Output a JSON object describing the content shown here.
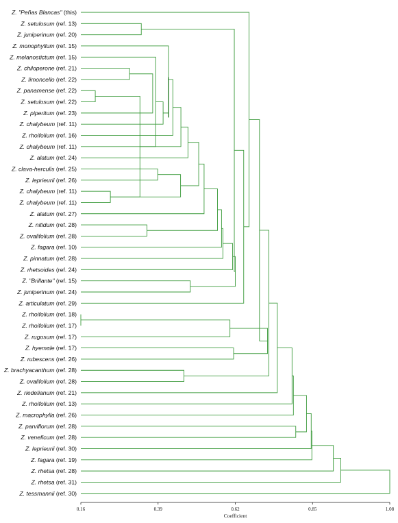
{
  "chart_data": {
    "type": "dendrogram",
    "xlabel": "Coefficient",
    "xlim": [
      0.16,
      1.08
    ],
    "ticks": [
      "0.16",
      "0.39",
      "0.62",
      "0.85",
      "1.08"
    ],
    "grid": false,
    "line_color": "#3a9a3a",
    "highlight_color": "#0b6b0b",
    "leaves": [
      {
        "sp": "Z. \"Peñas Blancas\"",
        "ref": "(this)"
      },
      {
        "sp": "Z. setulosum",
        "ref": "(ref. 13)"
      },
      {
        "sp": "Z. juniperinum",
        "ref": "(ref. 20)"
      },
      {
        "sp": "Z. monophyllum",
        "ref": "(ref. 15)"
      },
      {
        "sp": "Z. melanostictum",
        "ref": "(ref. 15)"
      },
      {
        "sp": "Z. chiloperone",
        "ref": "(ref. 21)"
      },
      {
        "sp": "Z. limoncello",
        "ref": "(ref. 22)"
      },
      {
        "sp": "Z. panamense",
        "ref": "(ref. 22)"
      },
      {
        "sp": "Z. setulosum",
        "ref": "(ref. 22)"
      },
      {
        "sp": "Z. piperitum",
        "ref": "(ref. 23)"
      },
      {
        "sp": "Z. chalybeum",
        "ref": "(ref. 11)"
      },
      {
        "sp": "Z. rhoifolium",
        "ref": "(ref. 16)"
      },
      {
        "sp": "Z. chalybeum",
        "ref": "(ref. 11)"
      },
      {
        "sp": "Z. alatum",
        "ref": "(ref. 24)"
      },
      {
        "sp": "Z. clava-herculis",
        "ref": "(ref. 25)"
      },
      {
        "sp": "Z. leprieurii",
        "ref": "(ref. 26)"
      },
      {
        "sp": "Z. chalybeum",
        "ref": "(ref. 11)"
      },
      {
        "sp": "Z. chalybeum",
        "ref": "(ref. 11)"
      },
      {
        "sp": "Z. alatum",
        "ref": "(ref. 27)"
      },
      {
        "sp": "Z. nitidum",
        "ref": "(ref. 28)"
      },
      {
        "sp": "Z. ovalifolium",
        "ref": "(ref. 28)"
      },
      {
        "sp": "Z. fagara",
        "ref": "(ref. 10)"
      },
      {
        "sp": "Z. pinnatum",
        "ref": "(ref. 28)"
      },
      {
        "sp": "Z. rhetsoides",
        "ref": "(ref. 24)"
      },
      {
        "sp": "Z. \"Brillante\"",
        "ref": "(ref. 15)"
      },
      {
        "sp": "Z. juniperinum",
        "ref": "(ref. 24)"
      },
      {
        "sp": "Z. articulatum",
        "ref": "(ref. 29)"
      },
      {
        "sp": "Z. rhoifolium",
        "ref": "(ref. 18)"
      },
      {
        "sp": "Z. rhoifolium",
        "ref": "(ref. 17)"
      },
      {
        "sp": "Z. rugosum",
        "ref": "(ref. 17)"
      },
      {
        "sp": "Z. hyemale",
        "ref": "(ref. 17)"
      },
      {
        "sp": "Z. rubescens",
        "ref": "(ref. 26)"
      },
      {
        "sp": "Z. brachyacanthum",
        "ref": "(ref. 28)"
      },
      {
        "sp": "Z. ovalifolium",
        "ref": "(ref. 28)"
      },
      {
        "sp": "Z. riedelianum",
        "ref": "(ref. 21)"
      },
      {
        "sp": "Z. rhoifolium",
        "ref": "(ref. 13)"
      },
      {
        "sp": "Z. macrophylla",
        "ref": "(ref. 26)"
      },
      {
        "sp": "Z. parviflorum",
        "ref": "(ref. 28)"
      },
      {
        "sp": "Z. veneficum",
        "ref": "(ref. 28)"
      },
      {
        "sp": "Z. leprieurii",
        "ref": "(ref. 30)"
      },
      {
        "sp": "Z. fagara",
        "ref": "(ref. 19)"
      },
      {
        "sp": "Z. rhetsa",
        "ref": "(ref. 28)"
      },
      {
        "sp": "Z. rhetsa",
        "ref": "(ref. 31)"
      },
      {
        "sp": "Z. tessmannii",
        "ref": "(ref. 30)"
      }
    ],
    "merges": [
      {
        "a": "L27",
        "b": "L28",
        "h": 0.16
      },
      {
        "a": "L16",
        "b": "L17",
        "h": 0.248
      },
      {
        "a": "L7",
        "b": "L8",
        "h": 0.203
      },
      {
        "a": "L5",
        "b": "L6",
        "h": 0.305
      },
      {
        "a": "N3",
        "b": "N2",
        "h": 0.336
      },
      {
        "a": "N4",
        "b": "L9",
        "h": 0.374
      },
      {
        "a": "L14",
        "b": "L15",
        "h": 0.389
      },
      {
        "a": "N5",
        "b": "L4",
        "h": 0.383
      },
      {
        "a": "N8",
        "b": "L10",
        "h": 0.405
      },
      {
        "a": "L3",
        "b": "N9",
        "h": 0.421
      },
      {
        "a": "N10",
        "b": "L11",
        "h": 0.434
      },
      {
        "a": "N11",
        "b": "L12",
        "h": 0.458
      },
      {
        "a": "N12",
        "b": "L13",
        "h": 0.479
      },
      {
        "a": "N7",
        "b": "N2_b",
        "h": 0.457
      },
      {
        "a": "N13",
        "b": "N14",
        "h": 0.511
      },
      {
        "a": "N15",
        "b": "L18",
        "h": 0.527
      },
      {
        "a": "L19",
        "b": "L20",
        "h": 0.357
      },
      {
        "a": "N16",
        "b": "N17",
        "h": 0.567
      },
      {
        "a": "N18",
        "b": "L21",
        "h": 0.579
      },
      {
        "a": "N19",
        "b": "L22",
        "h": 0.583
      },
      {
        "a": "L24",
        "b": "L25",
        "h": 0.486
      },
      {
        "a": "N20",
        "b": "L23",
        "h": 0.612
      },
      {
        "a": "N22",
        "b": "N21",
        "h": 0.62
      },
      {
        "a": "L1",
        "b": "L2",
        "h": 0.34
      },
      {
        "a": "N24",
        "b": "N23",
        "h": 0.617
      },
      {
        "a": "N25",
        "b": "L26",
        "h": 0.645
      },
      {
        "a": "N1",
        "b": "L29",
        "h": 0.604
      },
      {
        "a": "L30",
        "b": "L31",
        "h": 0.615
      },
      {
        "a": "L0",
        "b": "N26",
        "h": 0.661
      },
      {
        "a": "N27",
        "b": "N28",
        "h": 0.716
      },
      {
        "a": "N29",
        "b": "N30",
        "h": 0.692
      },
      {
        "a": "L32",
        "b": "L33",
        "h": 0.467
      },
      {
        "a": "N31",
        "b": "N32",
        "h": 0.72
      },
      {
        "a": "N33",
        "b": "L34",
        "h": 0.745
      },
      {
        "a": "N34",
        "b": "L35",
        "h": 0.789
      },
      {
        "a": "L37",
        "b": "L38",
        "h": 0.8
      },
      {
        "a": "N35",
        "b": "L36",
        "h": 0.793
      },
      {
        "a": "N37",
        "b": "N36",
        "h": 0.832
      },
      {
        "a": "N38",
        "b": "L39",
        "h": 0.846
      },
      {
        "a": "N39",
        "b": "L40",
        "h": 0.848
      },
      {
        "a": "N40",
        "b": "L41",
        "h": 0.912
      },
      {
        "a": "N41",
        "b": "L42",
        "h": 0.934
      },
      {
        "a": "N42",
        "b": "L43",
        "h": 1.08
      }
    ]
  }
}
